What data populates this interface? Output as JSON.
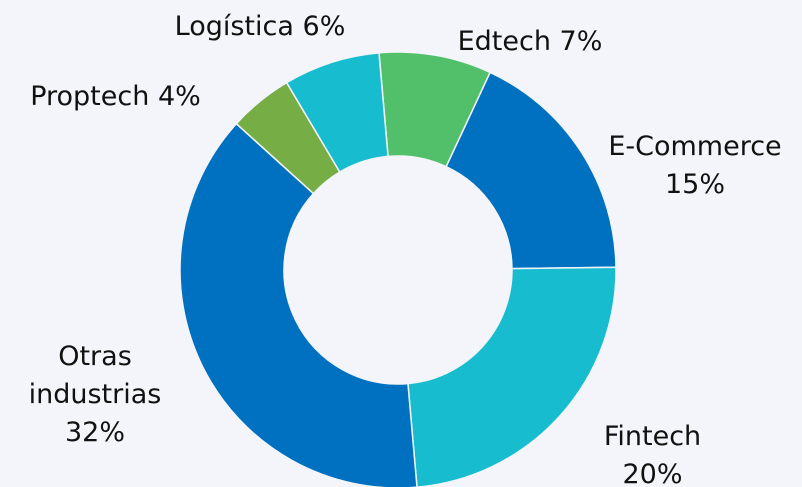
{
  "chart_data": {
    "type": "donut",
    "categories": [
      "Edtech",
      "E-Commerce",
      "Fintech",
      "Otras industrias",
      "Proptech",
      "Logística"
    ],
    "values": [
      7,
      15,
      20,
      32,
      4,
      6
    ],
    "value_labels": [
      "7%",
      "15%",
      "20%",
      "32%",
      "4%",
      "6%"
    ],
    "colors": [
      "#52bf6a",
      "#0070c0",
      "#17bdce",
      "#0070c0",
      "#76ad45",
      "#17bdce"
    ]
  }
}
